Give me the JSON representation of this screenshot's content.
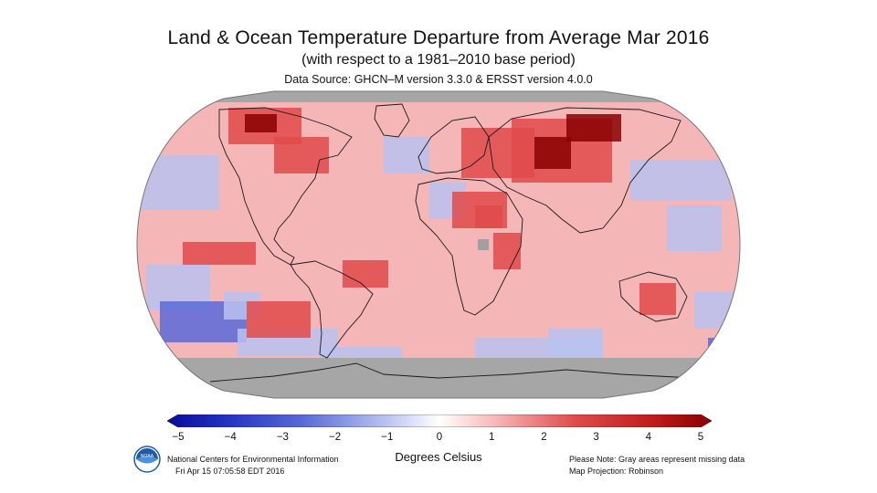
{
  "header": {
    "title": "Land & Ocean Temperature Departure from Average Mar 2016",
    "subtitle": "(with respect to a 1981–2010 base period)",
    "source": "Data Source: GHCN–M version 3.3.0 & ERSST version 4.0.0"
  },
  "colorbar": {
    "caption": "Degrees Celsius",
    "ticks": [
      "−5",
      "−4",
      "−3",
      "−2",
      "−1",
      "0",
      "1",
      "2",
      "3",
      "4",
      "5"
    ],
    "min": -5,
    "max": 5,
    "colors": {
      "cold_extreme": "#0a0a9c",
      "cold": "#5a6ad8",
      "cool": "#b8c2f0",
      "neutral": "#ffffff",
      "warm": "#f7b9b9",
      "hot": "#e04a4a",
      "hot_extreme": "#8a0000",
      "missing": "#a0a0a0"
    }
  },
  "footer": {
    "left_line1": "National Centers for Environmental Information",
    "left_line2": "Fri Apr 15 07:05:58 EDT 2016",
    "right_line1": "Please Note: Gray areas represent missing data",
    "right_line2": "Map Projection: Robinson"
  },
  "logo": {
    "text": "NOAA"
  }
}
